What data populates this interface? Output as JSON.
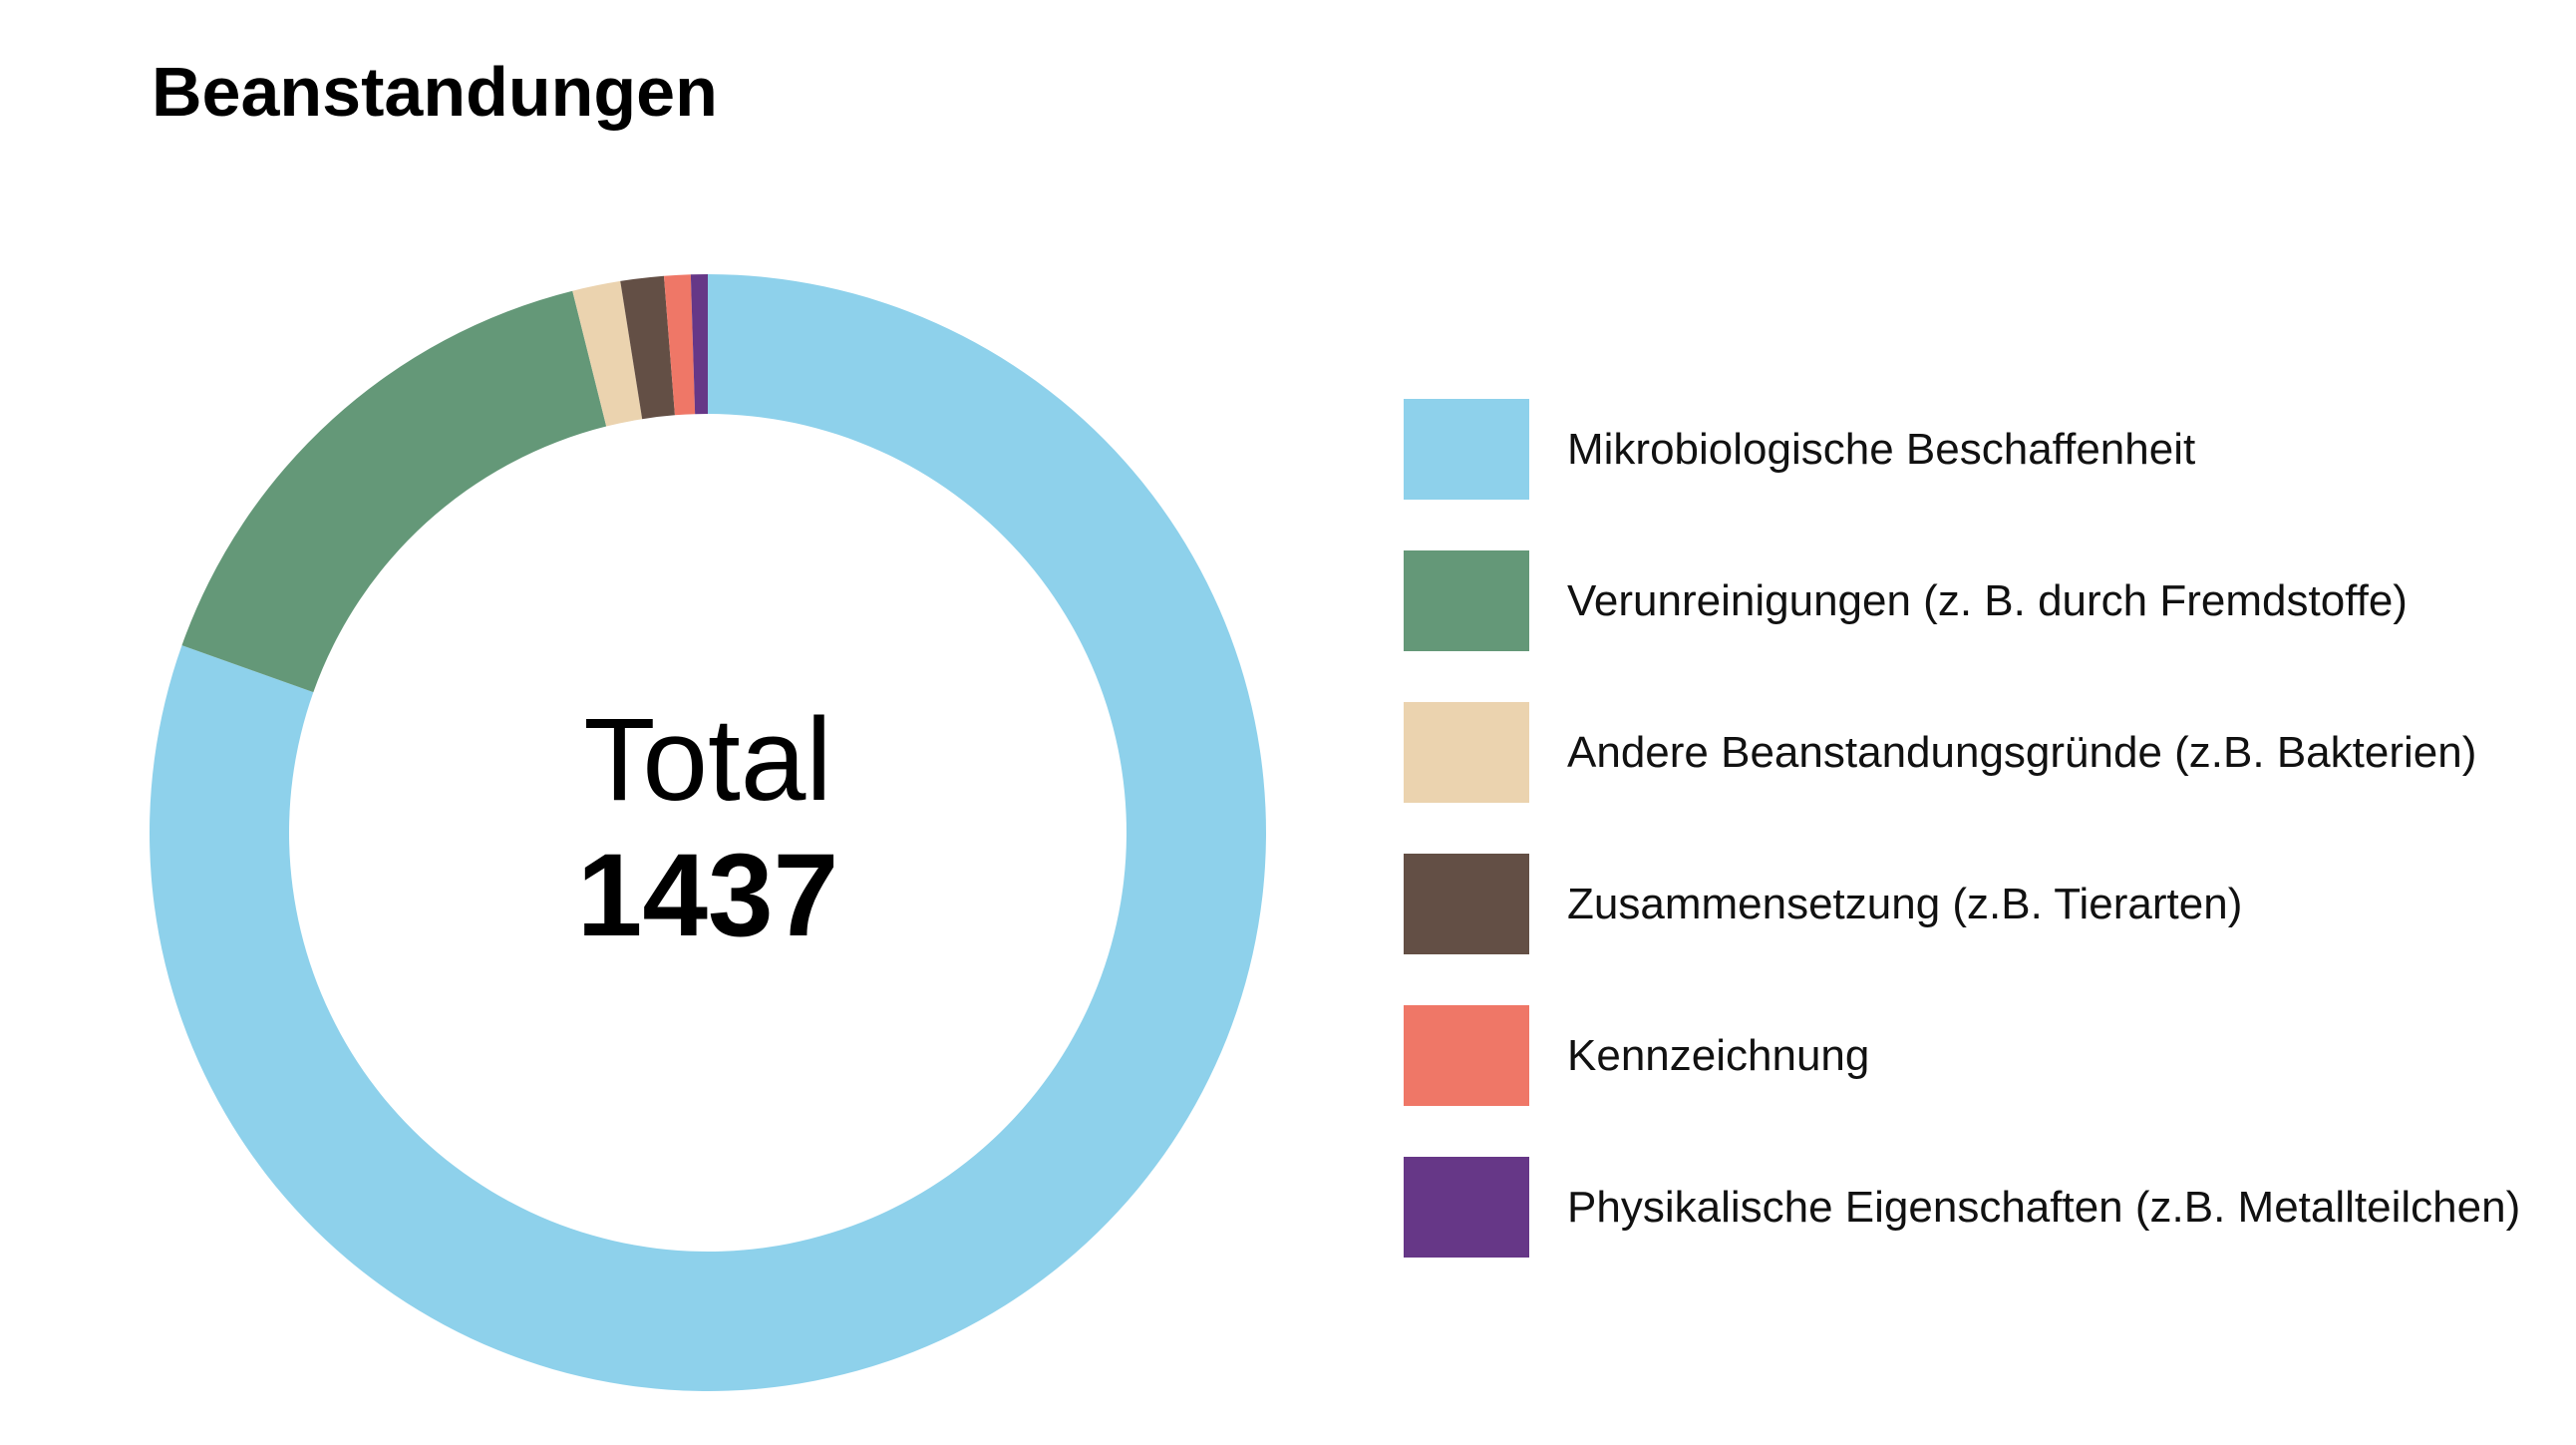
{
  "title": "Beanstandungen",
  "center": {
    "label": "Total",
    "value": "1437"
  },
  "chart_data": {
    "type": "pie",
    "variant": "donut",
    "title": "Beanstandungen",
    "total": 1437,
    "legend_position": "right",
    "categories": [
      "Mikrobiologische Beschaffenheit",
      "Verunreinigungen (z. B. durch Fremdstoffe)",
      "Andere Beanstandungsgründe (z.B. Bakterien)",
      "Zusammensetzung (z.B. Tierarten)",
      "Kennzeichnung",
      "Physikalische Eigenschaften (z.B. Metallteilchen)"
    ],
    "values": [
      1156,
      225,
      20,
      18,
      11,
      7
    ],
    "colors": [
      "#8ED1EB",
      "#649878",
      "#EBD3AF",
      "#634F45",
      "#EF7767",
      "#663787"
    ]
  }
}
